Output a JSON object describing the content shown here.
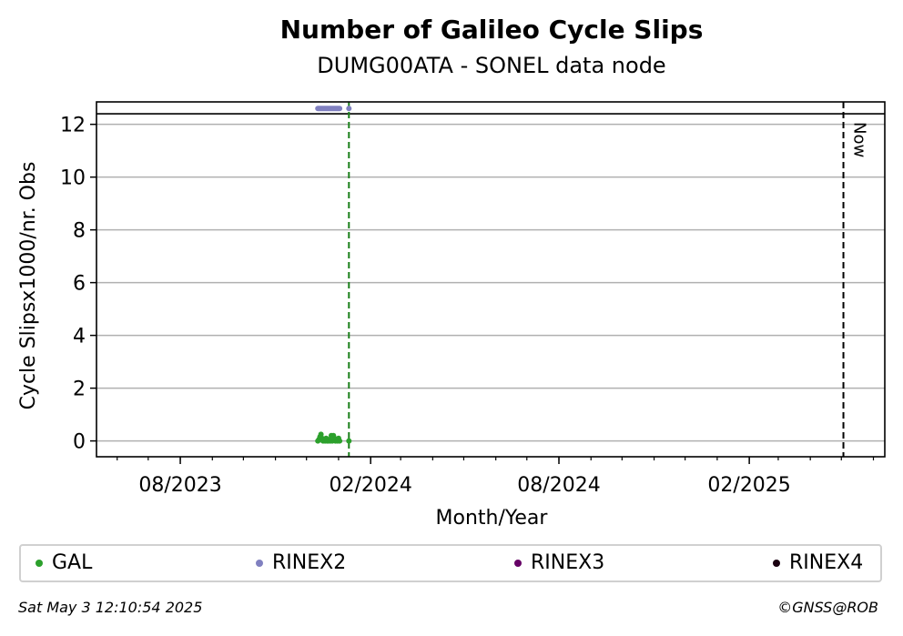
{
  "chart_data": {
    "type": "scatter",
    "title": "Number of Galileo Cycle Slips",
    "subtitle": "DUMG00ATA - SONEL data node",
    "xlabel": "Month/Year",
    "ylabel": "Cycle Slipsx1000/nr. Obs",
    "ylim": [
      -0.6,
      12.85
    ],
    "xlim": [
      "2023-05-12",
      "2025-06-12"
    ],
    "y_ticks": [
      0,
      2,
      4,
      6,
      8,
      10,
      12
    ],
    "x_ticks": [
      {
        "date": "2023-08-01",
        "label": "08/2023"
      },
      {
        "date": "2024-02-01",
        "label": "02/2024"
      },
      {
        "date": "2024-08-01",
        "label": "08/2024"
      },
      {
        "date": "2025-02-01",
        "label": "02/2025"
      }
    ],
    "grid": "y-major",
    "hline": {
      "y": 12.4,
      "color": "#000000"
    },
    "vlines": [
      {
        "date": "2024-01-11",
        "color": "#1a7f1a",
        "style": "dashed",
        "label": ""
      },
      {
        "date": "2025-05-03",
        "color": "#000000",
        "style": "dashed",
        "label": "Now"
      }
    ],
    "legend_position": "bottom",
    "series": [
      {
        "name": "GAL",
        "color": "#2ca02c",
        "points": [
          {
            "x": "2023-12-12",
            "y": 0.0
          },
          {
            "x": "2023-12-13",
            "y": 0.05
          },
          {
            "x": "2023-12-14",
            "y": 0.15
          },
          {
            "x": "2023-12-15",
            "y": 0.25
          },
          {
            "x": "2023-12-16",
            "y": 0.1
          },
          {
            "x": "2023-12-17",
            "y": 0.0
          },
          {
            "x": "2023-12-18",
            "y": 0.05
          },
          {
            "x": "2023-12-19",
            "y": 0.0
          },
          {
            "x": "2023-12-20",
            "y": 0.1
          },
          {
            "x": "2023-12-21",
            "y": 0.0
          },
          {
            "x": "2023-12-22",
            "y": 0.0
          },
          {
            "x": "2023-12-23",
            "y": 0.05
          },
          {
            "x": "2023-12-24",
            "y": 0.0
          },
          {
            "x": "2023-12-25",
            "y": 0.2
          },
          {
            "x": "2023-12-26",
            "y": 0.0
          },
          {
            "x": "2023-12-27",
            "y": 0.2
          },
          {
            "x": "2023-12-28",
            "y": 0.1
          },
          {
            "x": "2023-12-29",
            "y": 0.0
          },
          {
            "x": "2023-12-30",
            "y": 0.05
          },
          {
            "x": "2023-12-31",
            "y": 0.0
          },
          {
            "x": "2024-01-01",
            "y": 0.1
          },
          {
            "x": "2024-01-02",
            "y": 0.0
          },
          {
            "x": "2024-01-11",
            "y": 0.0
          }
        ]
      },
      {
        "name": "RINEX2",
        "color": "#8080c0",
        "points": [
          {
            "x": "2023-12-12",
            "y": 12.6
          },
          {
            "x": "2023-12-13",
            "y": 12.6
          },
          {
            "x": "2023-12-14",
            "y": 12.6
          },
          {
            "x": "2023-12-15",
            "y": 12.6
          },
          {
            "x": "2023-12-16",
            "y": 12.6
          },
          {
            "x": "2023-12-17",
            "y": 12.6
          },
          {
            "x": "2023-12-18",
            "y": 12.6
          },
          {
            "x": "2023-12-19",
            "y": 12.6
          },
          {
            "x": "2023-12-20",
            "y": 12.6
          },
          {
            "x": "2023-12-21",
            "y": 12.6
          },
          {
            "x": "2023-12-22",
            "y": 12.6
          },
          {
            "x": "2023-12-23",
            "y": 12.6
          },
          {
            "x": "2023-12-24",
            "y": 12.6
          },
          {
            "x": "2023-12-25",
            "y": 12.6
          },
          {
            "x": "2023-12-26",
            "y": 12.6
          },
          {
            "x": "2023-12-27",
            "y": 12.6
          },
          {
            "x": "2023-12-28",
            "y": 12.6
          },
          {
            "x": "2023-12-29",
            "y": 12.6
          },
          {
            "x": "2023-12-30",
            "y": 12.6
          },
          {
            "x": "2023-12-31",
            "y": 12.6
          },
          {
            "x": "2024-01-01",
            "y": 12.6
          },
          {
            "x": "2024-01-02",
            "y": 12.6
          },
          {
            "x": "2024-01-11",
            "y": 12.6
          }
        ]
      },
      {
        "name": "RINEX3",
        "color": "#660066",
        "points": []
      },
      {
        "name": "RINEX4",
        "color": "#1a0010",
        "points": []
      }
    ]
  },
  "footer": {
    "timestamp": "Sat May  3 12:10:54 2025",
    "credit": "©GNSS@ROB"
  }
}
